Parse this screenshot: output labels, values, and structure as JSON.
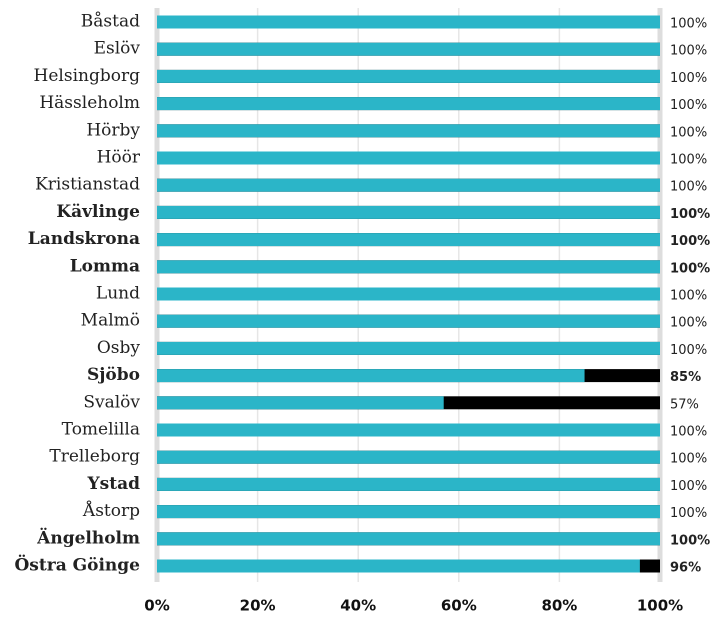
{
  "chart_data": {
    "type": "bar",
    "orientation": "horizontal",
    "categories": [
      "Båstad",
      "Eslöv",
      "Helsingborg",
      "Hässleholm",
      "Hörby",
      "Höör",
      "Kristianstad",
      "Kävlinge",
      "Landskrona",
      "Lomma",
      "Lund",
      "Malmö",
      "Osby",
      "Sjöbo",
      "Svalöv",
      "Tomelilla",
      "Trelleborg",
      "Ystad",
      "Åstorp",
      "Ängelholm",
      "Östra Göinge"
    ],
    "values": [
      100,
      100,
      100,
      100,
      100,
      100,
      100,
      100,
      100,
      100,
      100,
      100,
      100,
      85,
      57,
      100,
      100,
      100,
      100,
      100,
      96
    ],
    "value_labels": [
      "100%",
      "100%",
      "100%",
      "100%",
      "100%",
      "100%",
      "100%",
      "100%",
      "100%",
      "100%",
      "100%",
      "100%",
      "100%",
      "85%",
      "57%",
      "100%",
      "100%",
      "100%",
      "100%",
      "100%",
      "96%"
    ],
    "category_bold": [
      false,
      false,
      false,
      false,
      false,
      false,
      false,
      true,
      true,
      true,
      false,
      false,
      false,
      true,
      false,
      false,
      false,
      true,
      false,
      true,
      true
    ],
    "value_label_bold": [
      false,
      false,
      false,
      false,
      false,
      false,
      false,
      true,
      true,
      true,
      false,
      false,
      false,
      true,
      false,
      false,
      false,
      false,
      false,
      true,
      true
    ],
    "color": "#2bb5c8",
    "track_color": "#000000",
    "xlim": [
      0,
      100
    ],
    "xticks": [
      {
        "value": 0,
        "label": "0%"
      },
      {
        "value": 20,
        "label": "20%"
      },
      {
        "value": 40,
        "label": "40%"
      },
      {
        "value": 60,
        "label": "60%"
      },
      {
        "value": 80,
        "label": "80%"
      },
      {
        "value": 100,
        "label": "100%"
      }
    ],
    "grid": true
  }
}
